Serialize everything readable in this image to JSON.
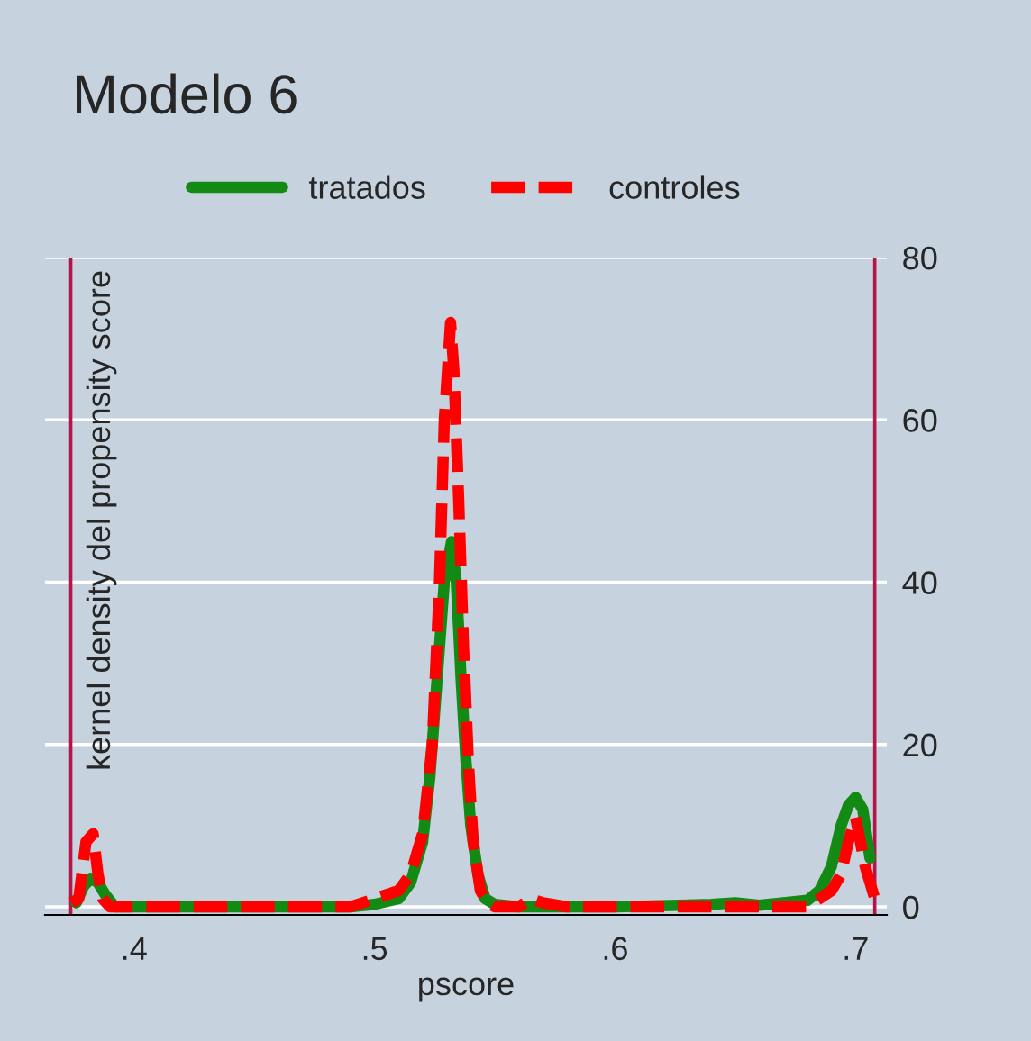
{
  "chart_data": {
    "type": "line",
    "title": "Modelo 6",
    "xlabel": "pscore",
    "ylabel": "kernel density del propensity score",
    "xlim": [
      0.363,
      0.713
    ],
    "xticks": [
      {
        "value": 0.4,
        "label": ".4"
      },
      {
        "value": 0.5,
        "label": ".5"
      },
      {
        "value": 0.6,
        "label": ".6"
      },
      {
        "value": 0.7,
        "label": ".7"
      }
    ],
    "ylim": [
      -1,
      80
    ],
    "yticks": [
      0,
      20,
      40,
      60,
      80
    ],
    "grid": "y",
    "legend": "top",
    "marker": "none",
    "ref_lines": [
      {
        "axis": "x",
        "value": 0.3737,
        "color": "#b5144a"
      },
      {
        "axis": "x",
        "value": 0.708,
        "color": "#b5144a"
      }
    ],
    "series": [
      {
        "name": "tratados",
        "color": "#138a13",
        "line_style": "solid",
        "x": [
          0.376,
          0.379,
          0.382,
          0.385,
          0.388,
          0.392,
          0.4,
          0.45,
          0.49,
          0.5,
          0.51,
          0.515,
          0.52,
          0.523,
          0.526,
          0.529,
          0.532,
          0.534,
          0.536,
          0.538,
          0.54,
          0.543,
          0.546,
          0.55,
          0.56,
          0.6,
          0.64,
          0.65,
          0.66,
          0.68,
          0.685,
          0.69,
          0.694,
          0.697,
          0.7,
          0.703,
          0.706
        ],
        "values": [
          0.5,
          2.5,
          3.5,
          3,
          1.5,
          0,
          0,
          0,
          0,
          0.3,
          1,
          3,
          8,
          16,
          28,
          40,
          45,
          40,
          28,
          18,
          10,
          4,
          1,
          0.3,
          0,
          0,
          0.3,
          0.5,
          0.2,
          0.8,
          2,
          5,
          10,
          12.5,
          13.5,
          12,
          6
        ]
      },
      {
        "name": "controles",
        "color": "#ff0000",
        "line_style": "dashed",
        "x": [
          0.374,
          0.377,
          0.38,
          0.383,
          0.385,
          0.387,
          0.39,
          0.4,
          0.45,
          0.49,
          0.5,
          0.505,
          0.51,
          0.515,
          0.52,
          0.524,
          0.527,
          0.529,
          0.5316,
          0.533,
          0.535,
          0.537,
          0.539,
          0.541,
          0.544,
          0.547,
          0.55,
          0.56,
          0.565,
          0.57,
          0.58,
          0.62,
          0.66,
          0.68,
          0.69,
          0.694,
          0.697,
          0.7,
          0.702,
          0.704,
          0.706,
          0.708
        ],
        "values": [
          0.5,
          1,
          8,
          9,
          4,
          1,
          0,
          0,
          0,
          0,
          1,
          1.5,
          2,
          4,
          9,
          20,
          40,
          60,
          72,
          66,
          50,
          32,
          18,
          8,
          2,
          0.5,
          0,
          0,
          1,
          0.5,
          0,
          0,
          0,
          0,
          2,
          4,
          8,
          11,
          8,
          5,
          3,
          1
        ]
      }
    ]
  }
}
